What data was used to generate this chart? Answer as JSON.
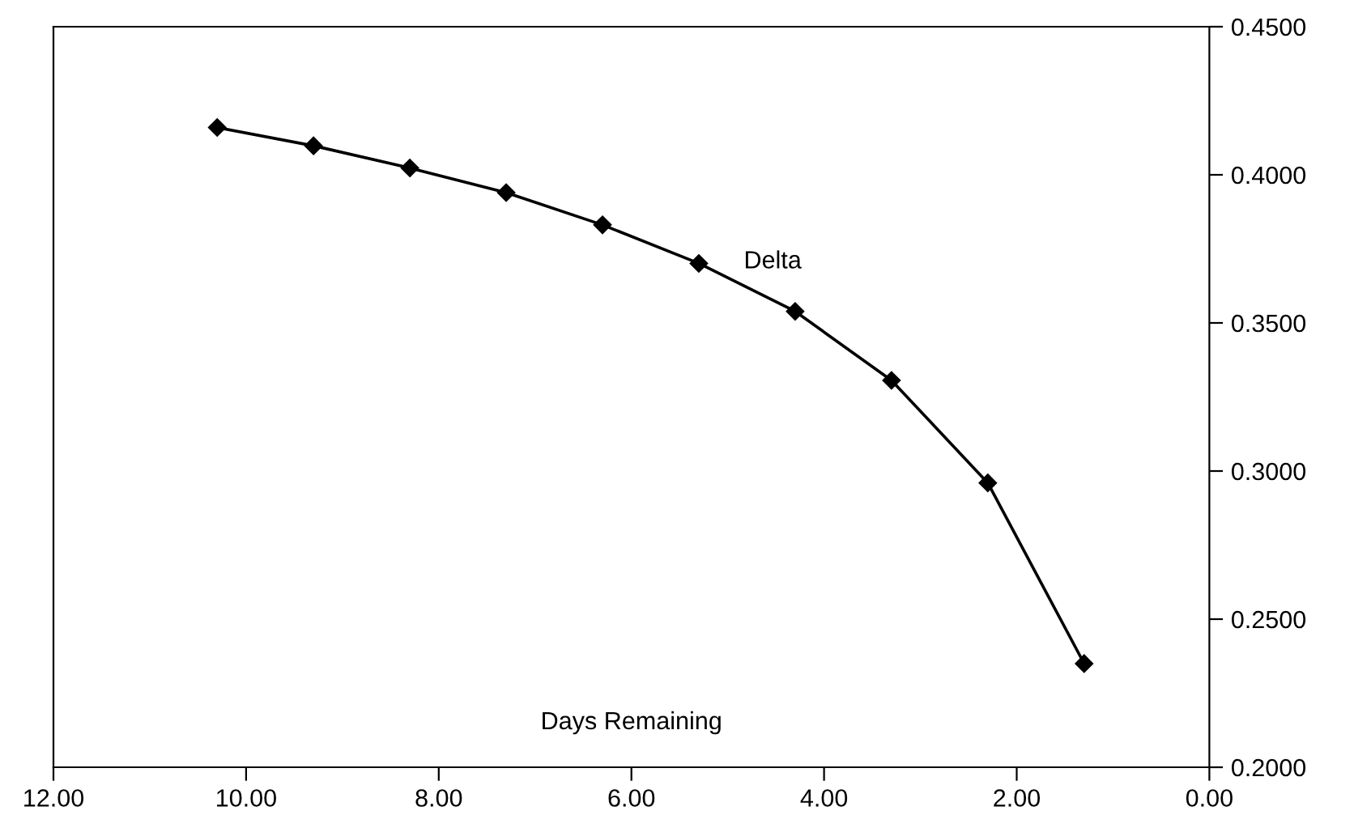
{
  "chart_data": {
    "type": "line",
    "xlabel": "Days Remaining",
    "x": [
      10.3,
      9.3,
      8.3,
      7.3,
      6.3,
      5.3,
      4.3,
      3.3,
      2.3,
      1.3
    ],
    "series": [
      {
        "name": "Delta",
        "color": "#000000",
        "axis": "y2",
        "values": [
          0.416,
          0.4098,
          0.4023,
          0.394,
          0.3831,
          0.3701,
          0.3539,
          0.3306,
          0.296,
          0.235
        ]
      }
    ],
    "xlim": [
      12,
      0
    ],
    "xticks": [
      {
        "value": 12,
        "label": "12.00"
      },
      {
        "value": 10,
        "label": "10.00"
      },
      {
        "value": 8,
        "label": "8.00"
      },
      {
        "value": 6,
        "label": "6.00"
      },
      {
        "value": 4,
        "label": "4.00"
      },
      {
        "value": 2,
        "label": "2.00"
      },
      {
        "value": 0,
        "label": "0.00"
      }
    ],
    "y2lim": [
      0.2,
      0.45
    ],
    "y2ticks": [
      {
        "value": 0.2,
        "label": "0.2000"
      },
      {
        "value": 0.25,
        "label": "0.2500"
      },
      {
        "value": 0.3,
        "label": "0.3000"
      },
      {
        "value": 0.35,
        "label": "0.3500"
      },
      {
        "value": 0.4,
        "label": "0.4000"
      },
      {
        "value": 0.45,
        "label": "0.4500"
      }
    ],
    "marker": "diamond",
    "line_style": "solid",
    "grid": false,
    "legend": false
  }
}
